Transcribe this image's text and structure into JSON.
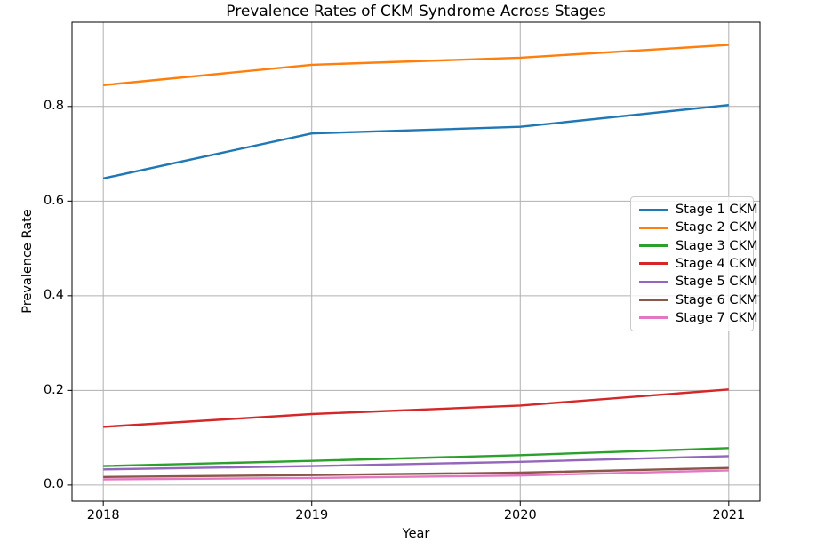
{
  "chart_data": {
    "type": "line",
    "title": "Prevalence Rates of CKM Syndrome Across Stages",
    "xlabel": "Year",
    "ylabel": "Prevalence Rate",
    "x": [
      2018,
      2019,
      2020,
      2021
    ],
    "xtick_labels": [
      "2018",
      "2019",
      "2020",
      "2021"
    ],
    "ytick_values": [
      0.0,
      0.2,
      0.4,
      0.6,
      0.8
    ],
    "ytick_labels": [
      "0.0",
      "0.2",
      "0.4",
      "0.6",
      "0.8"
    ],
    "xlim": [
      2017.85,
      2021.15
    ],
    "ylim": [
      -0.034,
      0.978
    ],
    "grid": true,
    "grid_color": "#b0b0b0",
    "spine_color": "#000000",
    "background_color": "#ffffff",
    "legend_position": "center right",
    "series": [
      {
        "name": "Stage 1 CKM",
        "color": "#1f77b4",
        "values": [
          0.648,
          0.743,
          0.757,
          0.803
        ]
      },
      {
        "name": "Stage 2 CKM",
        "color": "#ff7f0e",
        "values": [
          0.845,
          0.888,
          0.903,
          0.93
        ]
      },
      {
        "name": "Stage 3 CKM",
        "color": "#2ca02c",
        "values": [
          0.04,
          0.051,
          0.063,
          0.078
        ]
      },
      {
        "name": "Stage 4 CKM",
        "color": "#d62728",
        "values": [
          0.123,
          0.15,
          0.168,
          0.202
        ]
      },
      {
        "name": "Stage 5 CKM",
        "color": "#9467bd",
        "values": [
          0.033,
          0.04,
          0.049,
          0.061
        ]
      },
      {
        "name": "Stage 6 CKM",
        "color": "#8c564b",
        "values": [
          0.017,
          0.021,
          0.026,
          0.036
        ]
      },
      {
        "name": "Stage 7 CKM",
        "color": "#e377c2",
        "values": [
          0.012,
          0.015,
          0.02,
          0.031
        ]
      }
    ]
  }
}
